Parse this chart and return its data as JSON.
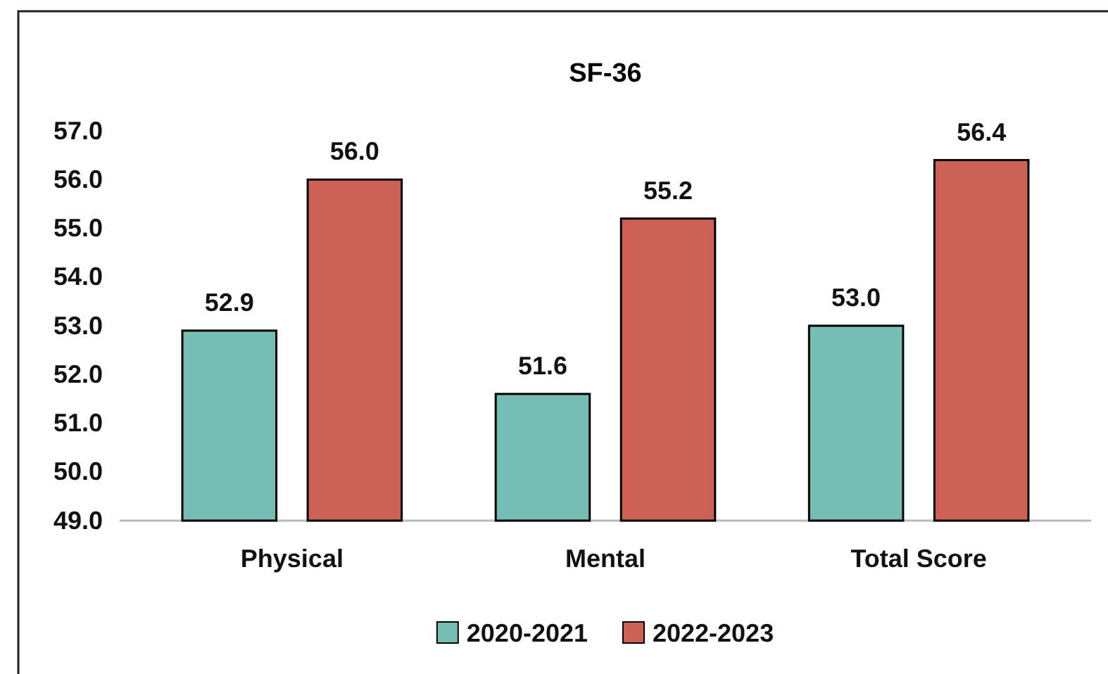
{
  "chart_data": {
    "type": "bar",
    "title": "SF-36",
    "categories": [
      "Physical",
      "Mental",
      "Total Score"
    ],
    "series": [
      {
        "name": "2020-2021",
        "color": "#76bdb3",
        "values": [
          52.9,
          51.6,
          53.0
        ],
        "value_labels": [
          "52.9",
          "51.6",
          "53.0"
        ]
      },
      {
        "name": "2022-2023",
        "color": "#cd6155",
        "values": [
          56.0,
          55.2,
          56.4
        ],
        "value_labels": [
          "56.0",
          "55.2",
          "56.4"
        ]
      }
    ],
    "ylim": [
      49,
      57
    ],
    "yticks": [
      {
        "value": 49,
        "label": "49.0"
      },
      {
        "value": 50,
        "label": "50.0"
      },
      {
        "value": 51,
        "label": "51.0"
      },
      {
        "value": 52,
        "label": "52.0"
      },
      {
        "value": 53,
        "label": "53.0"
      },
      {
        "value": 54,
        "label": "54.0"
      },
      {
        "value": 55,
        "label": "55.0"
      },
      {
        "value": 56,
        "label": "56.0"
      },
      {
        "value": 57,
        "label": "57.0"
      }
    ],
    "legend": "bottom",
    "grid": false
  }
}
